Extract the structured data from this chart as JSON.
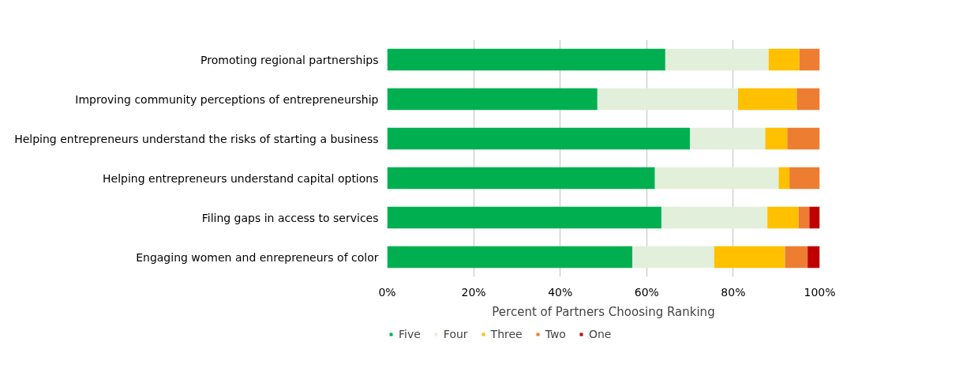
{
  "chart_data": {
    "type": "bar",
    "orientation": "horizontal",
    "stacked": true,
    "xlabel": "Percent of Partners Choosing Ranking",
    "categories": [
      "Promoting regional partnerships",
      "Improving community perceptions of entrepreneurship",
      "Helping entrepreneurs understand the risks of starting a business",
      "Helping entrepreneurs understand capital options",
      "Filing gaps in access to services",
      "Engaging women and enrepreneurs of color"
    ],
    "series": [
      {
        "name": "Five",
        "color": "#00b050",
        "values": [
          64.3,
          48.6,
          70.0,
          61.9,
          63.4,
          56.7
        ]
      },
      {
        "name": "Four",
        "color": "#e2efda",
        "values": [
          23.9,
          32.5,
          17.4,
          28.6,
          24.5,
          18.9
        ]
      },
      {
        "name": "Three",
        "color": "#ffc000",
        "values": [
          7.1,
          13.6,
          5.1,
          2.5,
          7.2,
          16.4
        ]
      },
      {
        "name": "Two",
        "color": "#ed7d31",
        "values": [
          4.7,
          5.3,
          7.5,
          7.0,
          2.5,
          5.2
        ]
      },
      {
        "name": "One",
        "color": "#c00000",
        "values": [
          0,
          0,
          0,
          0,
          2.4,
          2.8
        ]
      }
    ],
    "xlim": [
      0,
      100
    ],
    "xticks": [
      {
        "value": 0,
        "label": "0%"
      },
      {
        "value": 20,
        "label": "20%"
      },
      {
        "value": 40,
        "label": "40%"
      },
      {
        "value": 60,
        "label": "60%"
      },
      {
        "value": 80,
        "label": "80%"
      },
      {
        "value": 100,
        "label": "100%"
      }
    ],
    "grid": "x",
    "legend": "bottom"
  }
}
